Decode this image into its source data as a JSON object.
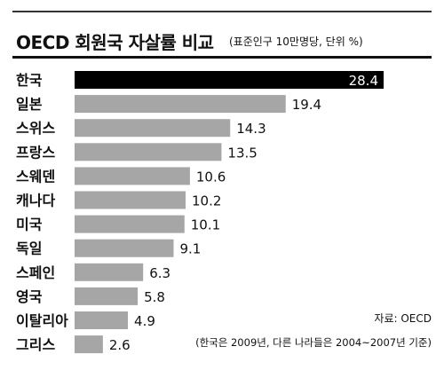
{
  "chart_data": {
    "type": "bar",
    "orientation": "horizontal",
    "title": "OECD 회원국 자살률 비교",
    "subtitle": "(표준인구 10만명당, 단위 %)",
    "categories": [
      "한국",
      "일본",
      "스위스",
      "프랑스",
      "스웨덴",
      "캐나다",
      "미국",
      "독일",
      "스페인",
      "영국",
      "이탈리아",
      "그리스"
    ],
    "values": [
      28.4,
      19.4,
      14.3,
      13.5,
      10.6,
      10.2,
      10.1,
      9.1,
      6.3,
      5.8,
      4.9,
      2.6
    ],
    "value_labels": [
      "28.4",
      "19.4",
      "14.3",
      "13.5",
      "10.6",
      "10.2",
      "10.1",
      "9.1",
      "6.3",
      "5.8",
      "4.9",
      "2.6"
    ],
    "xlim": [
      0,
      28.4
    ],
    "highlight_index": 0,
    "grid": false,
    "colors": {
      "highlight": "#000000",
      "bar": "#a6a6a6",
      "label": "#111111",
      "highlight_label": "#ffffff"
    }
  },
  "source": "자료: OECD",
  "note": "(한국은 2009년, 다른 나라들은 2004~2007년 기준)"
}
